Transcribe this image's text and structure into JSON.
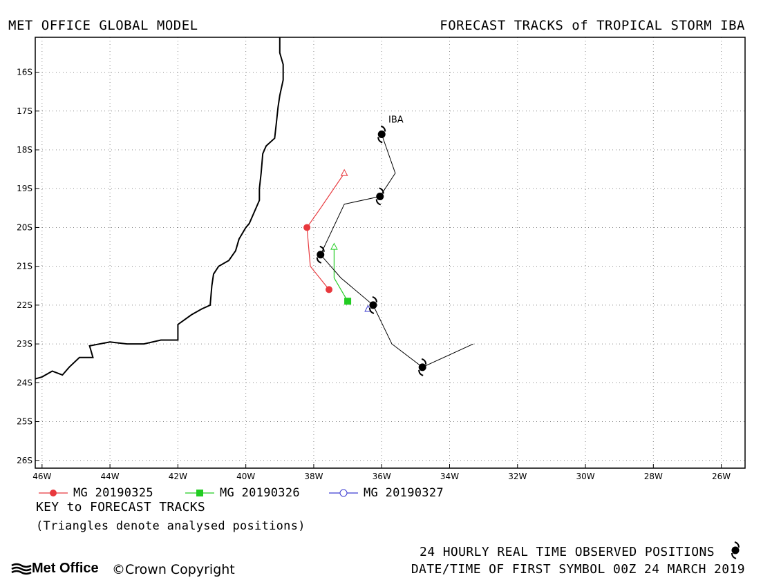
{
  "header": {
    "left": "MET OFFICE GLOBAL MODEL",
    "right": "FORECAST TRACKS of TROPICAL STORM IBA"
  },
  "map": {
    "lon_range": [
      -46.2,
      -25.3
    ],
    "lat_range": [
      -26.2,
      -15.1
    ],
    "lat_ticks": [
      "16S",
      "17S",
      "18S",
      "19S",
      "20S",
      "21S",
      "22S",
      "23S",
      "24S",
      "25S",
      "26S"
    ],
    "lon_ticks": [
      "46W",
      "44W",
      "42W",
      "40W",
      "38W",
      "36W",
      "34W",
      "32W",
      "30W",
      "28W",
      "26W"
    ],
    "grid": "dotted",
    "coastline": [
      [
        -39.0,
        -15.1
      ],
      [
        -39.0,
        -15.5
      ],
      [
        -38.9,
        -15.8
      ],
      [
        -38.9,
        -16.2
      ],
      [
        -39.0,
        -16.6
      ],
      [
        -39.05,
        -16.9
      ],
      [
        -39.1,
        -17.3
      ],
      [
        -39.15,
        -17.7
      ],
      [
        -39.4,
        -17.9
      ],
      [
        -39.5,
        -18.1
      ],
      [
        -39.55,
        -18.6
      ],
      [
        -39.6,
        -19.0
      ],
      [
        -39.6,
        -19.3
      ],
      [
        -39.7,
        -19.5
      ],
      [
        -39.8,
        -19.7
      ],
      [
        -39.9,
        -19.9
      ],
      [
        -40.0,
        -20.0
      ],
      [
        -40.2,
        -20.3
      ],
      [
        -40.3,
        -20.6
      ],
      [
        -40.5,
        -20.85
      ],
      [
        -40.8,
        -21.0
      ],
      [
        -40.95,
        -21.2
      ],
      [
        -41.0,
        -21.5
      ],
      [
        -41.05,
        -22.0
      ],
      [
        -41.3,
        -22.1
      ],
      [
        -41.6,
        -22.25
      ],
      [
        -42.0,
        -22.5
      ],
      [
        -42.0,
        -22.9
      ],
      [
        -42.5,
        -22.9
      ],
      [
        -43.0,
        -23.0
      ],
      [
        -43.5,
        -23.0
      ],
      [
        -44.0,
        -22.95
      ],
      [
        -44.6,
        -23.05
      ],
      [
        -44.5,
        -23.35
      ],
      [
        -44.9,
        -23.35
      ],
      [
        -45.2,
        -23.6
      ],
      [
        -45.4,
        -23.8
      ],
      [
        -45.7,
        -23.7
      ],
      [
        -46.0,
        -23.85
      ],
      [
        -46.2,
        -23.9
      ]
    ],
    "observed_track": {
      "name": "IBA",
      "points": [
        [
          -36.0,
          -17.6
        ],
        [
          -35.6,
          -18.6
        ],
        [
          -36.05,
          -19.2
        ],
        [
          -37.1,
          -19.4
        ],
        [
          -37.8,
          -20.7
        ],
        [
          -37.2,
          -21.3
        ],
        [
          -36.25,
          -22.0
        ],
        [
          -35.7,
          -23.0
        ],
        [
          -34.8,
          -23.6
        ],
        [
          -33.3,
          -23.0
        ]
      ],
      "symbols": [
        [
          -36.0,
          -17.6
        ],
        [
          -36.05,
          -19.2
        ],
        [
          -37.8,
          -20.7
        ],
        [
          -36.25,
          -22.0
        ],
        [
          -34.8,
          -23.6
        ]
      ],
      "label_position": [
        -35.8,
        -17.3
      ]
    },
    "forecast_tracks": [
      {
        "name": "MG 20190325",
        "color": "#e8383d",
        "marker": "circle",
        "analysed": [
          -37.1,
          -18.6
        ],
        "points": [
          [
            -37.1,
            -18.6
          ],
          [
            -37.8,
            -19.5
          ],
          [
            -38.2,
            -20.0
          ],
          [
            -38.1,
            -21.0
          ],
          [
            -37.55,
            -21.6
          ]
        ],
        "markers": [
          [
            -38.2,
            -20.0
          ],
          [
            -37.55,
            -21.6
          ]
        ]
      },
      {
        "name": "MG 20190326",
        "color": "#22cc22",
        "marker": "square",
        "analysed": [
          -37.4,
          -20.5
        ],
        "points": [
          [
            -37.4,
            -20.5
          ],
          [
            -37.4,
            -21.3
          ],
          [
            -37.0,
            -21.9
          ]
        ],
        "markers": [
          [
            -37.0,
            -21.9
          ]
        ]
      },
      {
        "name": "MG 20190327",
        "color": "#3a3ad0",
        "marker": "circle-open",
        "analysed": [
          -36.4,
          -22.1
        ],
        "points": [
          [
            -36.4,
            -22.1
          ]
        ],
        "markers": []
      }
    ]
  },
  "legend": {
    "items": [
      {
        "label": "MG 20190325",
        "color": "#e8383d",
        "marker": "circle"
      },
      {
        "label": "MG 20190326",
        "color": "#22cc22",
        "marker": "square"
      },
      {
        "label": "MG 20190327",
        "color": "#3a3ad0",
        "marker": "circle-open"
      }
    ],
    "title": "KEY to FORECAST TRACKS",
    "note": "(Triangles denote analysed positions)"
  },
  "footer": {
    "logo": "Met Office",
    "copyright": "Crown Copyright",
    "observed": "24 HOURLY REAL TIME OBSERVED POSITIONS",
    "first_symbol": "DATE/TIME OF FIRST SYMBOL 00Z 24 MARCH 2019"
  }
}
